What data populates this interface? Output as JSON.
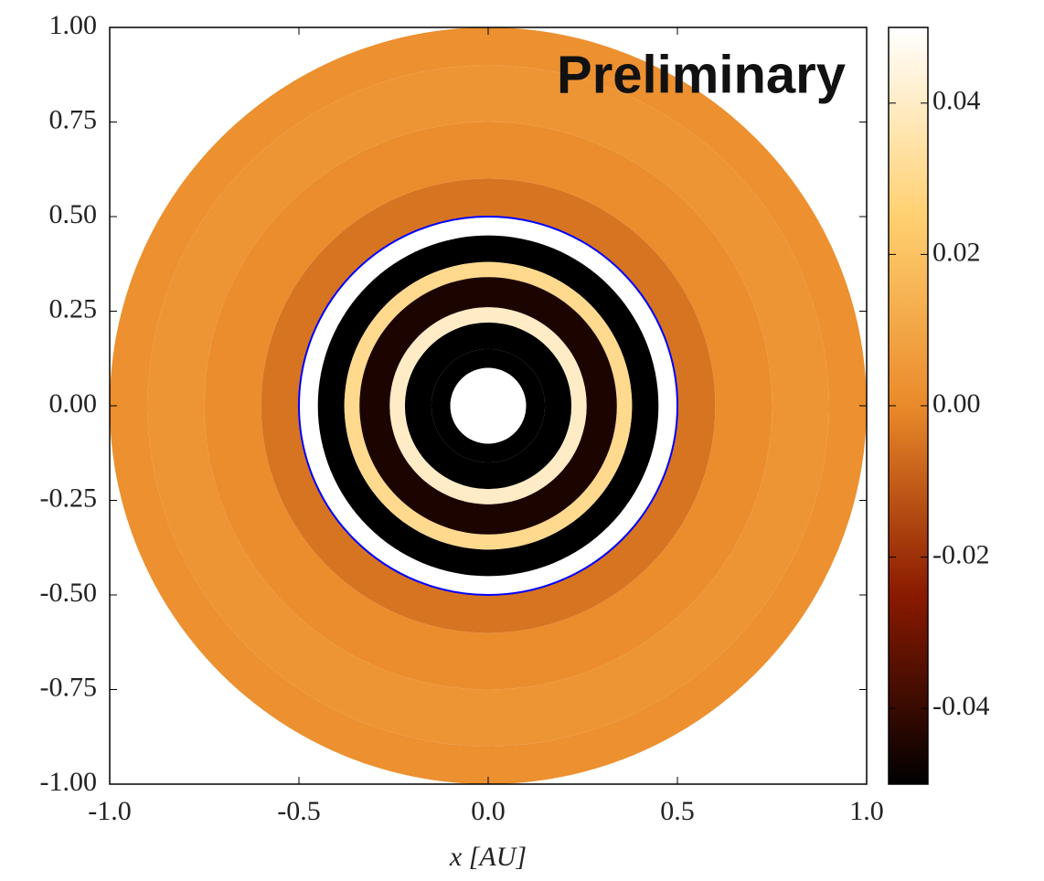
{
  "chart_data": {
    "type": "disk",
    "annotation": "Preliminary",
    "xlabel": "x [AU]",
    "xlim": [
      -1,
      1
    ],
    "ylim": [
      -1,
      1
    ],
    "xticks": [
      {
        "value": -1,
        "label": "-1.0"
      },
      -0.5,
      {
        "value": 0,
        "label": "0.0"
      },
      0.5,
      {
        "value": 1,
        "label": "1.0"
      }
    ],
    "yticks": [
      {
        "value": 1,
        "label": "1.00"
      },
      0.75,
      {
        "value": 0.5,
        "label": "0.50"
      },
      0.25,
      {
        "value": 0,
        "label": "0.00"
      },
      -0.25,
      {
        "value": -0.5,
        "label": "-0.50"
      },
      -0.75,
      {
        "value": -1,
        "label": "-1.00"
      }
    ],
    "clim": [
      -0.05,
      0.05
    ],
    "cticks": [
      0.04,
      0.02,
      {
        "value": 0,
        "label": "0.00"
      },
      -0.02,
      -0.04
    ],
    "colormap": [
      "#000000",
      "#8a1a00",
      "#ea8a2a",
      "#ffd070",
      "#ffffff"
    ],
    "rings": {
      "r_inner": [
        0.9,
        0.75,
        0.6,
        0.5,
        0.45,
        0.38,
        0.34,
        0.26,
        0.22,
        0.15,
        0.1,
        0
      ],
      "r_outer": [
        1,
        0.9,
        0.75,
        0.6,
        0.5,
        0.45,
        0.38,
        0.34,
        0.26,
        0.22,
        0.15,
        0.1
      ],
      "values": [
        0.002,
        0.004,
        0.001,
        -0.005,
        0.05,
        -0.05,
        0.03,
        -0.045,
        0.04,
        -0.05,
        -0.05,
        0.05
      ]
    },
    "circle": {
      "radius": 0.5,
      "color": "#0000ff"
    }
  }
}
